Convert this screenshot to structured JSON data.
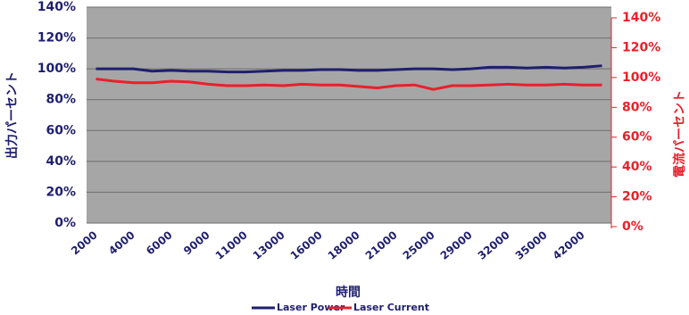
{
  "chart_data": {
    "type": "line",
    "x_label": "時間",
    "y_label": "出力パーセント",
    "y2_label": "電流パーセント",
    "categories": [
      "2000",
      null,
      "4000",
      null,
      "6000",
      null,
      "9000",
      null,
      "11000",
      null,
      "13000",
      null,
      "16000",
      null,
      "18000",
      null,
      "21000",
      null,
      "25000",
      null,
      "29000",
      null,
      "32000",
      null,
      "35000",
      null,
      "42000",
      null
    ],
    "series": [
      {
        "name": "Laser Power",
        "color": "#1f1f6e",
        "values": [
          100,
          100,
          100,
          98.5,
          99,
          98.5,
          98.5,
          98,
          98,
          98.5,
          99,
          99,
          99.5,
          99.5,
          99,
          99,
          99.5,
          100,
          100,
          99.5,
          100,
          101,
          101,
          100.5,
          101,
          100.5,
          101,
          102
        ]
      },
      {
        "name": "Laser Current",
        "color": "#e8202a",
        "axis": "y2",
        "values": [
          99,
          97.5,
          96.5,
          96.5,
          97.5,
          97,
          95.5,
          94.5,
          94.5,
          95,
          94.5,
          95.5,
          95,
          95,
          94,
          93,
          94.5,
          95,
          92,
          94.5,
          94.5,
          95,
          95.5,
          95,
          95,
          95.5,
          95,
          95
        ]
      }
    ],
    "ylim": [
      0,
      140
    ],
    "yticks": [
      {
        "value": 0,
        "label": "0%"
      },
      {
        "value": 20,
        "label": "20%"
      },
      {
        "value": 40,
        "label": "40%"
      },
      {
        "value": 60,
        "label": "60%"
      },
      {
        "value": 80,
        "label": "80%"
      },
      {
        "value": 100,
        "label": "100%"
      },
      {
        "value": 120,
        "label": "120%"
      },
      {
        "value": 140,
        "label": "140%"
      }
    ],
    "y2lim": [
      0,
      140
    ],
    "y2ticks": [
      {
        "value": 0,
        "label": "0%"
      },
      {
        "value": 20,
        "label": "20%"
      },
      {
        "value": 40,
        "label": "40%"
      },
      {
        "value": 60,
        "label": "60%"
      },
      {
        "value": 80,
        "label": "80%"
      },
      {
        "value": 100,
        "label": "100%"
      },
      {
        "value": 120,
        "label": "120%"
      },
      {
        "value": 140,
        "label": "140%"
      }
    ],
    "grid": true,
    "legend": "bottom"
  }
}
